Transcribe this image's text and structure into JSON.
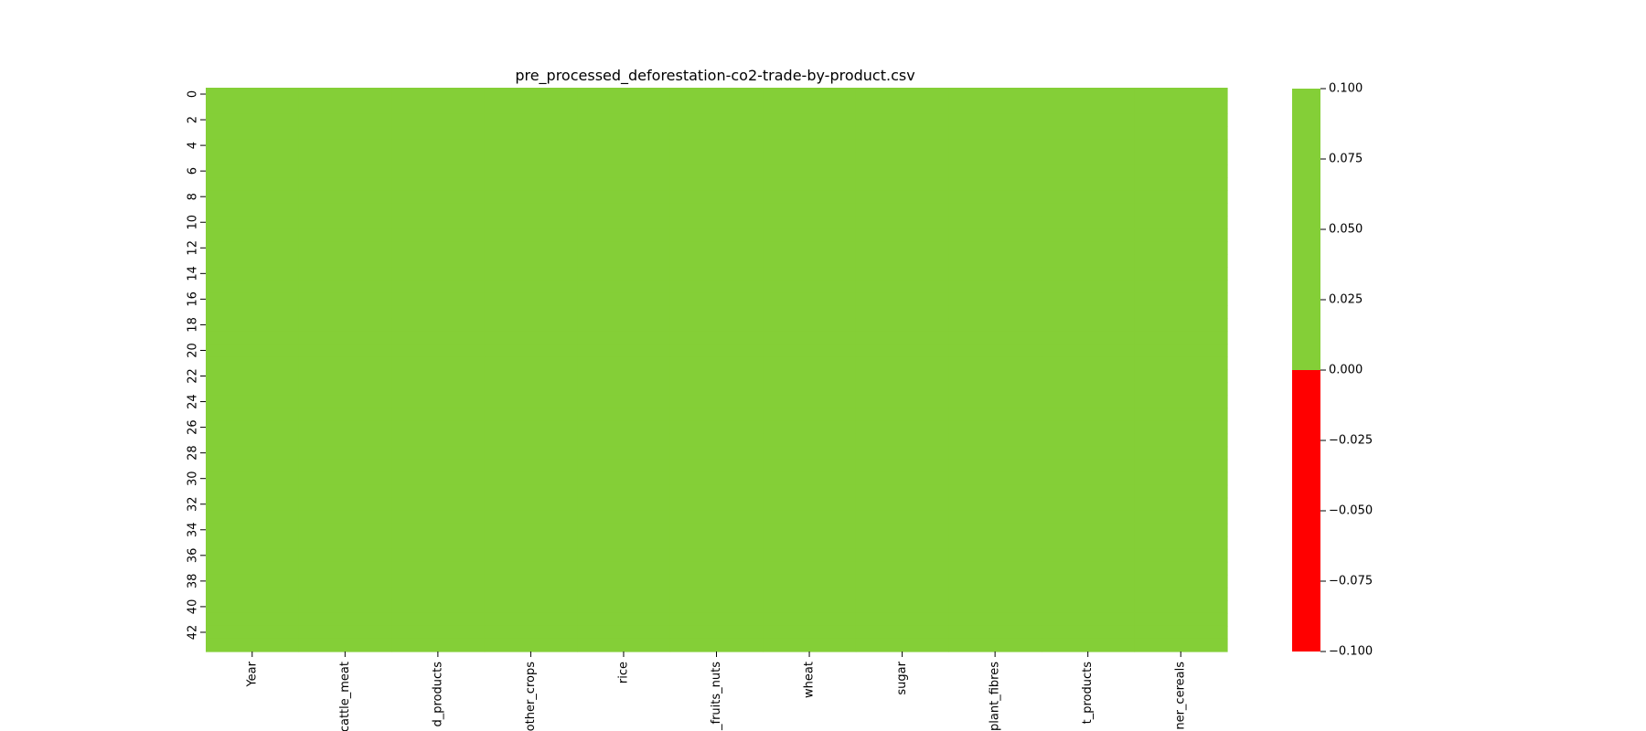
{
  "chart_data": {
    "type": "heatmap",
    "title": "pre_processed_deforestation-co2-trade-by-product.csv",
    "columns": [
      "Year",
      "cattle_meat",
      "d_products",
      "other_crops",
      "rice",
      "_fruits_nuts",
      "wheat",
      "sugar",
      "plant_fibres",
      "t_products",
      "ner_cereals"
    ],
    "row_tick_labels": [
      "0",
      "2",
      "4",
      "6",
      "8",
      "10",
      "12",
      "14",
      "16",
      "18",
      "20",
      "22",
      "24",
      "26",
      "28",
      "30",
      "32",
      "34",
      "36",
      "38",
      "40",
      "42"
    ],
    "row_count": 44,
    "cell_value": 0,
    "cell_color": "#84CF37",
    "colorbar": {
      "range": [
        -0.1,
        0.1
      ],
      "tick_values": [
        0.1,
        0.075,
        0.05,
        0.025,
        0.0,
        -0.025,
        -0.05,
        -0.075,
        -0.1
      ],
      "tick_labels": [
        "0.100",
        "0.075",
        "0.050",
        "0.025",
        "0.000",
        "−0.025",
        "−0.050",
        "−0.075",
        "−0.100"
      ],
      "colors": [
        {
          "from": -0.1,
          "to": 0.0,
          "color": "#FF0000"
        },
        {
          "from": 0.0,
          "to": 0.1,
          "color": "#84CF37"
        }
      ]
    },
    "grid": false,
    "legend": "colorbar-right"
  }
}
